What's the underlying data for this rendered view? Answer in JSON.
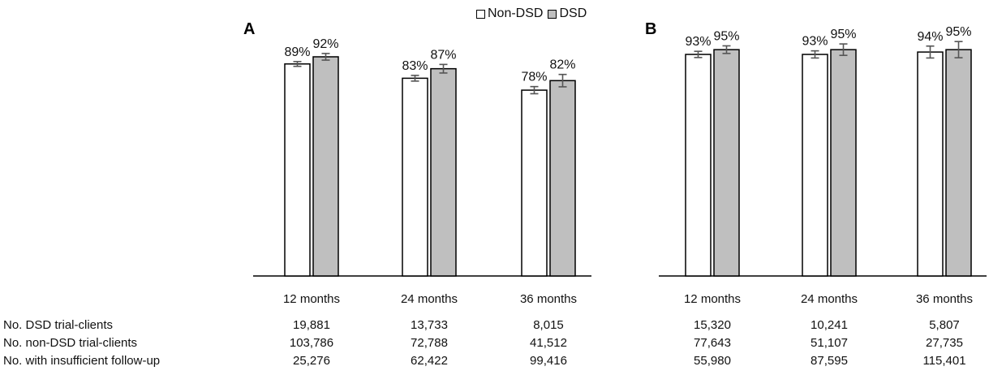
{
  "legend": [
    {
      "label": "Non-DSD",
      "color": "#ffffff"
    },
    {
      "label": "DSD",
      "color": "#bfbfbf"
    }
  ],
  "chart_data": [
    {
      "type": "bar",
      "title": "A",
      "categories": [
        "12 months",
        "24 months",
        "36 months"
      ],
      "ylim": [
        0,
        100
      ],
      "series": [
        {
          "name": "Non-DSD",
          "color": "#ffffff",
          "values": [
            89,
            83,
            78
          ],
          "labels": [
            "89%",
            "83%",
            "78%"
          ],
          "errors": [
            1.0,
            1.2,
            1.5
          ]
        },
        {
          "name": "DSD",
          "color": "#bfbfbf",
          "values": [
            92,
            87,
            82
          ],
          "labels": [
            "92%",
            "87%",
            "82%"
          ],
          "errors": [
            1.4,
            1.8,
            2.6
          ]
        }
      ]
    },
    {
      "type": "bar",
      "title": "B",
      "categories": [
        "12 months",
        "24 months",
        "36 months"
      ],
      "ylim": [
        0,
        100
      ],
      "series": [
        {
          "name": "Non-DSD",
          "color": "#ffffff",
          "values": [
            93,
            93,
            94
          ],
          "labels": [
            "93%",
            "93%",
            "94%"
          ],
          "errors": [
            1.3,
            1.5,
            2.5
          ]
        },
        {
          "name": "DSD",
          "color": "#bfbfbf",
          "values": [
            95,
            95,
            95
          ],
          "labels": [
            "95%",
            "95%",
            "95%"
          ],
          "errors": [
            1.6,
            2.4,
            3.4
          ]
        }
      ]
    }
  ],
  "table": {
    "rows": [
      {
        "label": "No. DSD trial-clients",
        "values": [
          "19,881",
          "13,733",
          "8,015",
          "15,320",
          "10,241",
          "5,807"
        ]
      },
      {
        "label": "No. non-DSD trial-clients",
        "values": [
          "103,786",
          "72,788",
          "41,512",
          "77,643",
          "51,107",
          "27,735"
        ]
      },
      {
        "label": "No. with insufficient follow-up",
        "values": [
          "25,276",
          "62,422",
          "99,416",
          "55,980",
          "87,595",
          "115,401"
        ]
      }
    ]
  }
}
